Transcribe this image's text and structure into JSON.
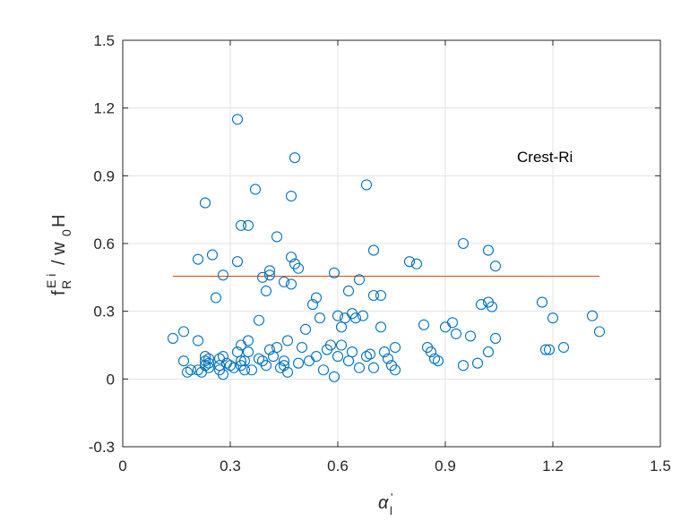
{
  "chart_data": {
    "type": "scatter",
    "xlabel": "α_l'",
    "ylabel": "f_R^{E i} / w_0H",
    "xlim": [
      0,
      1.5
    ],
    "ylim": [
      -0.3,
      1.5
    ],
    "xticks": [
      "0",
      "0.3",
      "0.6",
      "0.9",
      "1.2",
      "1.5"
    ],
    "yticks": [
      "-0.3",
      "0",
      "0.3",
      "0.6",
      "0.9",
      "1.2",
      "1.5"
    ],
    "grid": true,
    "annotation": "Crest-Ri",
    "marker_color": "#0072BD",
    "line_color": "#D95319",
    "mean_line": {
      "x": [
        0.14,
        1.33
      ],
      "y": [
        0.455,
        0.455
      ]
    },
    "points": [
      [
        0.14,
        0.18
      ],
      [
        0.17,
        0.21
      ],
      [
        0.17,
        0.08
      ],
      [
        0.18,
        0.03
      ],
      [
        0.19,
        0.04
      ],
      [
        0.21,
        0.53
      ],
      [
        0.21,
        0.17
      ],
      [
        0.21,
        0.04
      ],
      [
        0.22,
        0.03
      ],
      [
        0.23,
        0.78
      ],
      [
        0.23,
        0.1
      ],
      [
        0.23,
        0.08
      ],
      [
        0.23,
        0.06
      ],
      [
        0.24,
        0.09
      ],
      [
        0.24,
        0.07
      ],
      [
        0.24,
        0.05
      ],
      [
        0.25,
        0.55
      ],
      [
        0.26,
        0.36
      ],
      [
        0.27,
        0.09
      ],
      [
        0.27,
        0.06
      ],
      [
        0.27,
        0.04
      ],
      [
        0.28,
        0.46
      ],
      [
        0.28,
        0.1
      ],
      [
        0.28,
        0.02
      ],
      [
        0.29,
        0.07
      ],
      [
        0.3,
        0.06
      ],
      [
        0.31,
        0.05
      ],
      [
        0.32,
        1.15
      ],
      [
        0.32,
        0.52
      ],
      [
        0.32,
        0.12
      ],
      [
        0.33,
        0.68
      ],
      [
        0.33,
        0.15
      ],
      [
        0.33,
        0.08
      ],
      [
        0.33,
        0.06
      ],
      [
        0.34,
        0.08
      ],
      [
        0.34,
        0.04
      ],
      [
        0.35,
        0.68
      ],
      [
        0.35,
        0.17
      ],
      [
        0.35,
        0.12
      ],
      [
        0.36,
        0.04
      ],
      [
        0.37,
        0.84
      ],
      [
        0.38,
        0.26
      ],
      [
        0.38,
        0.09
      ],
      [
        0.39,
        0.45
      ],
      [
        0.39,
        0.08
      ],
      [
        0.4,
        0.39
      ],
      [
        0.4,
        0.06
      ],
      [
        0.41,
        0.48
      ],
      [
        0.41,
        0.46
      ],
      [
        0.41,
        0.13
      ],
      [
        0.42,
        0.1
      ],
      [
        0.43,
        0.63
      ],
      [
        0.43,
        0.14
      ],
      [
        0.44,
        0.05
      ],
      [
        0.45,
        0.43
      ],
      [
        0.45,
        0.08
      ],
      [
        0.45,
        0.06
      ],
      [
        0.46,
        0.17
      ],
      [
        0.46,
        0.03
      ],
      [
        0.47,
        0.81
      ],
      [
        0.47,
        0.54
      ],
      [
        0.47,
        0.42
      ],
      [
        0.48,
        0.98
      ],
      [
        0.48,
        0.51
      ],
      [
        0.49,
        0.49
      ],
      [
        0.49,
        0.07
      ],
      [
        0.5,
        0.14
      ],
      [
        0.51,
        0.22
      ],
      [
        0.52,
        0.08
      ],
      [
        0.53,
        0.33
      ],
      [
        0.54,
        0.36
      ],
      [
        0.54,
        0.1
      ],
      [
        0.55,
        0.27
      ],
      [
        0.56,
        0.04
      ],
      [
        0.57,
        0.13
      ],
      [
        0.58,
        0.15
      ],
      [
        0.59,
        0.47
      ],
      [
        0.59,
        0.01
      ],
      [
        0.6,
        0.28
      ],
      [
        0.6,
        0.1
      ],
      [
        0.61,
        0.15
      ],
      [
        0.61,
        0.23
      ],
      [
        0.62,
        0.27
      ],
      [
        0.63,
        0.39
      ],
      [
        0.63,
        0.08
      ],
      [
        0.64,
        0.29
      ],
      [
        0.64,
        0.12
      ],
      [
        0.65,
        0.27
      ],
      [
        0.66,
        0.44
      ],
      [
        0.66,
        0.05
      ],
      [
        0.67,
        0.28
      ],
      [
        0.68,
        0.86
      ],
      [
        0.68,
        0.1
      ],
      [
        0.69,
        0.11
      ],
      [
        0.7,
        0.57
      ],
      [
        0.7,
        0.37
      ],
      [
        0.7,
        0.05
      ],
      [
        0.72,
        0.37
      ],
      [
        0.72,
        0.23
      ],
      [
        0.73,
        0.12
      ],
      [
        0.74,
        0.09
      ],
      [
        0.75,
        0.06
      ],
      [
        0.76,
        0.14
      ],
      [
        0.76,
        0.04
      ],
      [
        0.8,
        0.52
      ],
      [
        0.82,
        0.51
      ],
      [
        0.84,
        0.24
      ],
      [
        0.85,
        0.14
      ],
      [
        0.86,
        0.12
      ],
      [
        0.87,
        0.09
      ],
      [
        0.88,
        0.08
      ],
      [
        0.9,
        0.23
      ],
      [
        0.92,
        0.25
      ],
      [
        0.93,
        0.2
      ],
      [
        0.95,
        0.6
      ],
      [
        0.95,
        0.06
      ],
      [
        0.97,
        0.19
      ],
      [
        0.99,
        0.07
      ],
      [
        1.0,
        0.33
      ],
      [
        1.02,
        0.57
      ],
      [
        1.02,
        0.34
      ],
      [
        1.02,
        0.12
      ],
      [
        1.03,
        0.32
      ],
      [
        1.04,
        0.5
      ],
      [
        1.04,
        0.18
      ],
      [
        1.17,
        0.34
      ],
      [
        1.18,
        0.13
      ],
      [
        1.19,
        0.13
      ],
      [
        1.2,
        0.27
      ],
      [
        1.23,
        0.14
      ],
      [
        1.31,
        0.28
      ],
      [
        1.33,
        0.21
      ]
    ]
  }
}
